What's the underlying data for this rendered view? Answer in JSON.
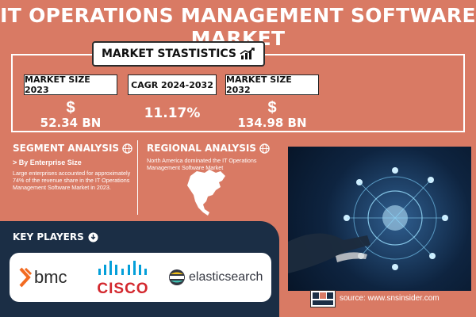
{
  "title": "IT OPERATIONS MANAGEMENT SOFTWARE MARKET",
  "stats_header": "MARKET STASTISTICS",
  "stats": [
    {
      "label": "MARKET SIZE 2023",
      "symbol": "$",
      "value": "52.34 BN"
    },
    {
      "label": "CAGR 2024-2032",
      "symbol": "",
      "value": "11.17%"
    },
    {
      "label": "MARKET SIZE 2032",
      "symbol": "$",
      "value": "134.98 BN"
    }
  ],
  "segment": {
    "heading": "SEGMENT ANALYSIS",
    "subheading": "> By Enterprise Size",
    "text": "Large enterprises accounted for approximately 74% of the revenue share in the IT Operations Management Software Market in 2023."
  },
  "regional": {
    "heading": "REGIONAL ANALYSIS",
    "text": "North America dominated the IT Operations Management Software Market"
  },
  "key_players": {
    "heading": "KEY PLAYERS",
    "logos": [
      "bmc",
      "CISCO",
      "elasticsearch"
    ]
  },
  "source": "source: www.snsinsider.com",
  "colors": {
    "background": "#d97a64",
    "dark_band": "#1b2e45",
    "bmc_orange": "#f26b21",
    "cisco_blue": "#049fd9"
  }
}
